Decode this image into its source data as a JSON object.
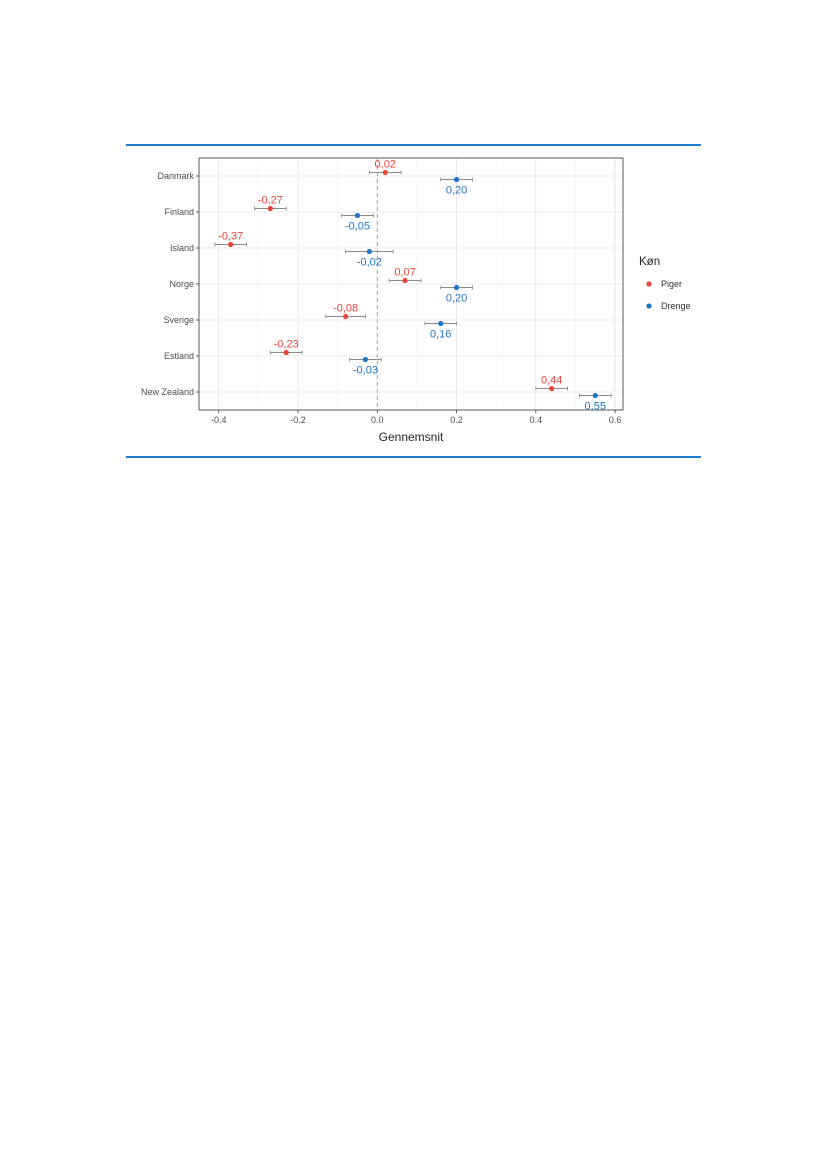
{
  "chart_data": {
    "type": "scatter",
    "xlabel": "Gennemsnit",
    "xlim": [
      -0.45,
      0.62
    ],
    "x_ticks": [
      -0.4,
      -0.2,
      0.0,
      0.2,
      0.4,
      0.6
    ],
    "x_tick_labels": [
      "-0.4",
      "-0.2",
      "0.0",
      "0.2",
      "0.4",
      "0.6"
    ],
    "reference_line": 0,
    "grid": true,
    "legend_position": "right",
    "legend_title": "Køn",
    "categories": [
      "Danmark",
      "Finland",
      "Island",
      "Norge",
      "Sverige",
      "Estland",
      "New Zealand"
    ],
    "series": [
      {
        "name": "Piger",
        "color": "#e8453c",
        "values": [
          0.02,
          -0.27,
          -0.37,
          0.07,
          -0.08,
          -0.23,
          0.44
        ],
        "labels": [
          "0,02",
          "-0,27",
          "-0,37",
          "0,07",
          "-0,08",
          "-0,23",
          "0,44"
        ],
        "ci_low": [
          -0.02,
          -0.31,
          -0.41,
          0.03,
          -0.13,
          -0.27,
          0.4
        ],
        "ci_high": [
          0.06,
          -0.23,
          -0.33,
          0.11,
          -0.03,
          -0.19,
          0.48
        ]
      },
      {
        "name": "Drenge",
        "color": "#1f74c4",
        "values": [
          0.2,
          -0.05,
          -0.02,
          0.2,
          0.16,
          -0.03,
          0.55
        ],
        "labels": [
          "0,20",
          "-0,05",
          "-0,02",
          "0,20",
          "0,16",
          "-0,03",
          "0,55"
        ],
        "ci_low": [
          0.16,
          -0.09,
          -0.08,
          0.16,
          0.12,
          -0.07,
          0.51
        ],
        "ci_high": [
          0.24,
          -0.01,
          0.04,
          0.24,
          0.2,
          0.01,
          0.59
        ]
      }
    ]
  }
}
